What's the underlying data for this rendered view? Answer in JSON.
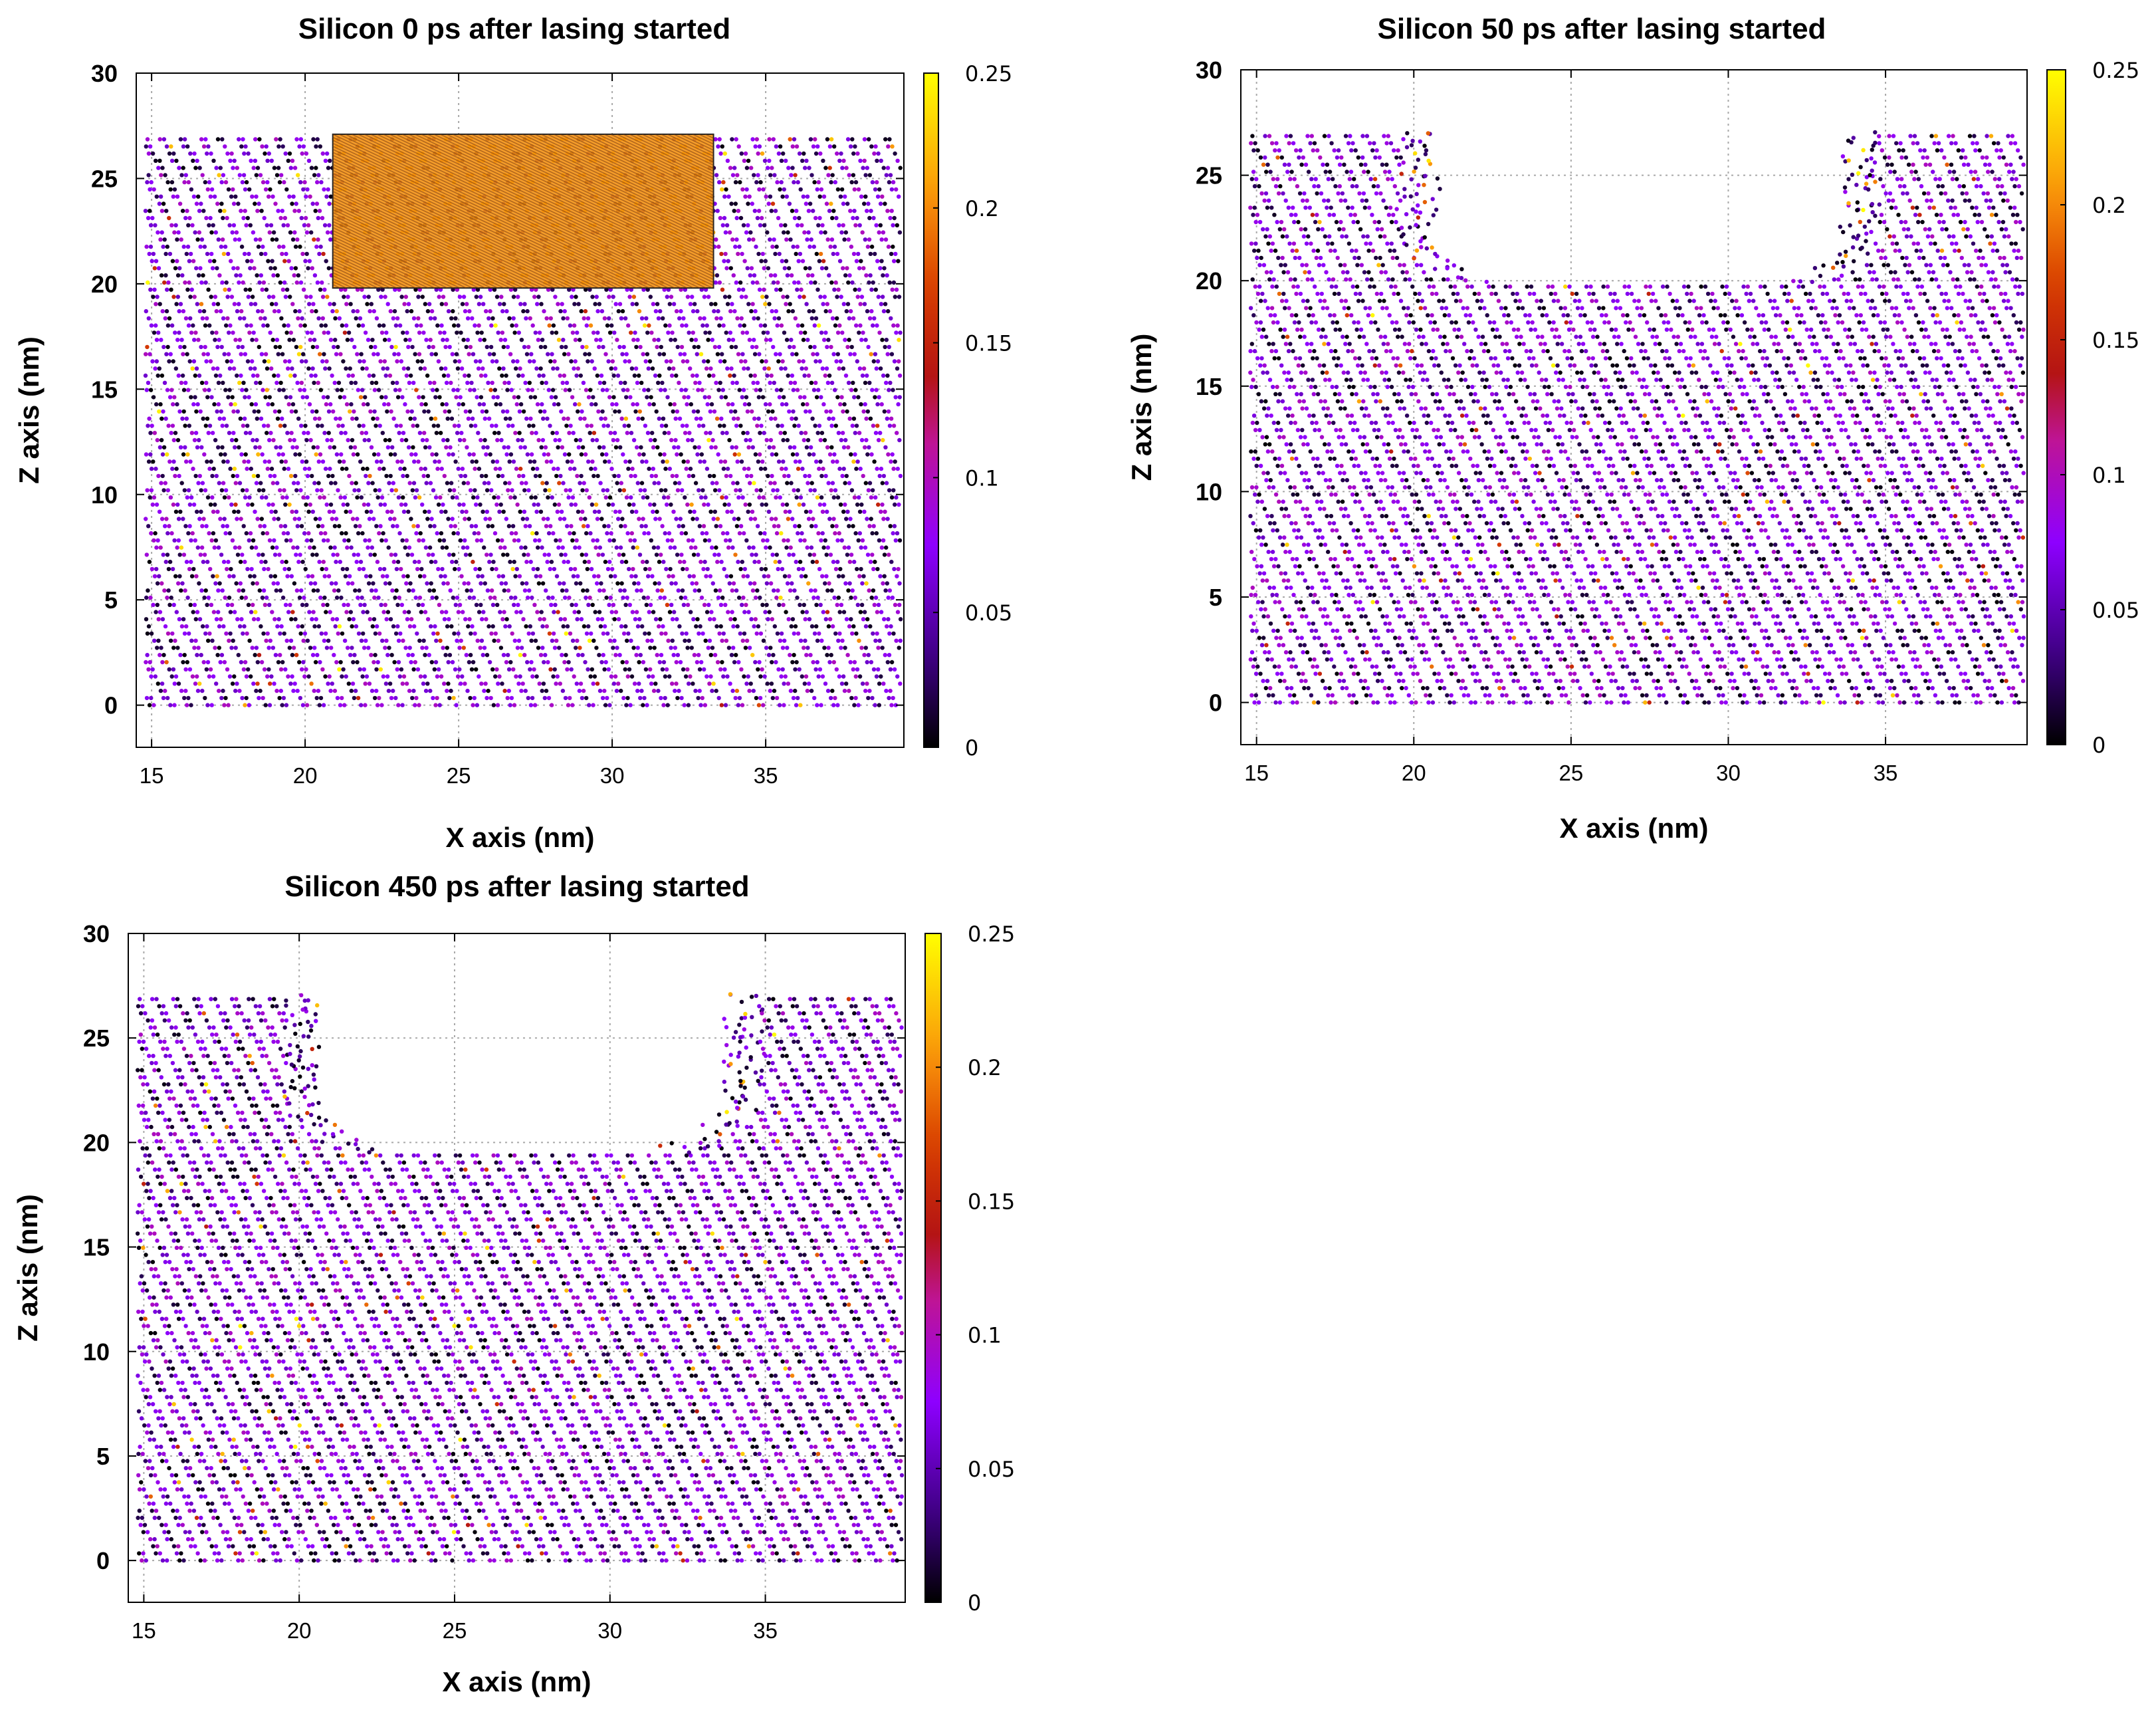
{
  "chart_data": [
    {
      "type": "scatter",
      "title": "Silicon 0 ps after lasing started",
      "xlabel": "X axis (nm)",
      "ylabel": "Z axis (nm)",
      "xlim": [
        14.5,
        39.5
      ],
      "ylim": [
        -2,
        30
      ],
      "xticks": [
        "15",
        "20",
        "25",
        "30",
        "35"
      ],
      "yticks": [
        "0",
        "5",
        "10",
        "15",
        "20",
        "25",
        "30"
      ],
      "colorbar": {
        "min": 0,
        "max": 0.25,
        "ticks": [
          "0",
          "0.05",
          "0.1",
          "0.15",
          "0.2",
          "0.25"
        ],
        "colormap": "gnuplot (black-purple-red-orange-yellow)"
      },
      "grid": true,
      "surface_z": 27.1,
      "bottom_z": 0,
      "x_extent": [
        14.8,
        39.4
      ],
      "laser_region": {
        "x": [
          20.9,
          33.3
        ],
        "z": [
          19.8,
          27.1
        ],
        "color": "#f4900c"
      },
      "crater": null
    },
    {
      "type": "scatter",
      "title": "Silicon 50 ps after lasing started",
      "xlabel": "X axis (nm)",
      "ylabel": "Z axis (nm)",
      "xlim": [
        14.5,
        39.5
      ],
      "ylim": [
        -2,
        30
      ],
      "xticks": [
        "15",
        "20",
        "25",
        "30",
        "35"
      ],
      "yticks": [
        "0",
        "5",
        "10",
        "15",
        "20",
        "25",
        "30"
      ],
      "colorbar": {
        "min": 0,
        "max": 0.25,
        "ticks": [
          "0",
          "0.05",
          "0.1",
          "0.15",
          "0.2",
          "0.25"
        ],
        "colormap": "gnuplot (black-purple-red-orange-yellow)"
      },
      "grid": true,
      "surface_z": 27.1,
      "bottom_z": 0,
      "x_extent": [
        14.8,
        39.4
      ],
      "laser_region": null,
      "crater": {
        "x_left": 20.7,
        "x_right": 33.7,
        "bottom_z": 19.8,
        "corner_radius": 2.8
      }
    },
    {
      "type": "scatter",
      "title": "Silicon 450 ps after lasing started",
      "xlabel": "X axis (nm)",
      "ylabel": "Z axis (nm)",
      "xlim": [
        14.5,
        39.5
      ],
      "ylim": [
        -2,
        30
      ],
      "xticks": [
        "15",
        "20",
        "25",
        "30",
        "35"
      ],
      "yticks": [
        "0",
        "5",
        "10",
        "15",
        "20",
        "25",
        "30"
      ],
      "colorbar": {
        "min": 0,
        "max": 0.25,
        "ticks": [
          "0",
          "0.05",
          "0.1",
          "0.15",
          "0.2",
          "0.25"
        ],
        "colormap": "gnuplot (black-purple-red-orange-yellow)"
      },
      "grid": true,
      "surface_z": 27.1,
      "bottom_z": 0,
      "x_extent": [
        14.8,
        39.4
      ],
      "laser_region": null,
      "crater": {
        "x_left": 20.7,
        "x_right": 33.7,
        "bottom_z": 19.6,
        "corner_radius": 2.9
      }
    }
  ]
}
